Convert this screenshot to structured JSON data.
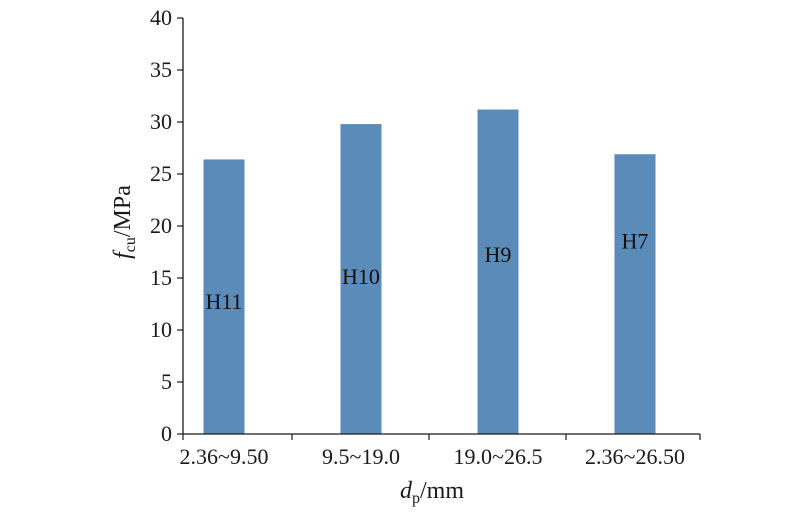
{
  "chart_data": {
    "type": "bar",
    "categories": [
      "2.36~9.50",
      "9.5~19.0",
      "19.0~26.5",
      "2.36~26.50"
    ],
    "values": [
      26.4,
      29.8,
      31.2,
      26.9
    ],
    "bar_labels": [
      "H11",
      "H10",
      "H9",
      "H7"
    ],
    "bar_label_values": [
      12.8,
      15.2,
      17.3,
      18.6
    ],
    "ylim": [
      0,
      40
    ],
    "yticks": [
      0,
      5,
      10,
      15,
      20,
      25,
      30,
      35,
      40
    ],
    "ylabel": {
      "italic": "f",
      "sub": "cu",
      "rest": "/MPa"
    },
    "xlabel": {
      "italic": "d",
      "sub": "p",
      "rest": "/mm"
    },
    "bar_color": "#5b8bb8",
    "grid": false
  }
}
